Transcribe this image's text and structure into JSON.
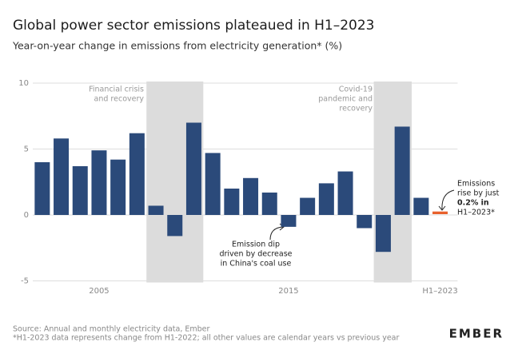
{
  "chart_data": {
    "type": "bar",
    "title": "Global power sector emissions plateaued in H1–2023",
    "subtitle": "Year-on-year change in emissions from electricity generation* (%)",
    "categories": [
      null,
      null,
      null,
      "2005",
      null,
      null,
      null,
      null,
      null,
      null,
      null,
      null,
      null,
      "2015",
      null,
      null,
      null,
      null,
      null,
      null,
      null,
      "H1–2023"
    ],
    "values": [
      4.0,
      5.8,
      3.7,
      4.9,
      4.2,
      6.2,
      0.7,
      -1.6,
      7.0,
      4.7,
      2.0,
      2.8,
      1.7,
      -0.9,
      1.3,
      2.4,
      3.3,
      -1.0,
      -2.8,
      6.7,
      1.3,
      0.2
    ],
    "color": "#2b4a7a",
    "highlight_color": "#e8612c",
    "ylim": [
      -5,
      10
    ],
    "yticks": [
      -5,
      0,
      5,
      10
    ],
    "grid": true,
    "regions": [
      {
        "lines": [
          "Financial crisis",
          "and recovery"
        ]
      },
      {
        "lines": [
          "Covid-19",
          "pandemic and",
          "recovery"
        ]
      }
    ],
    "annotations": [
      {
        "lines": [
          "Emission dip",
          "driven by decrease",
          "in China's coal use"
        ]
      },
      {
        "lines": [
          "Emissions",
          "rise by just",
          "0.2% in",
          "H1–2023*"
        ]
      }
    ],
    "source": [
      "Source: Annual and monthly electricity data, Ember",
      "*H1-2023 data represents change from H1-2022; all other values are calendar years vs previous year"
    ],
    "logo": "EMBER"
  }
}
